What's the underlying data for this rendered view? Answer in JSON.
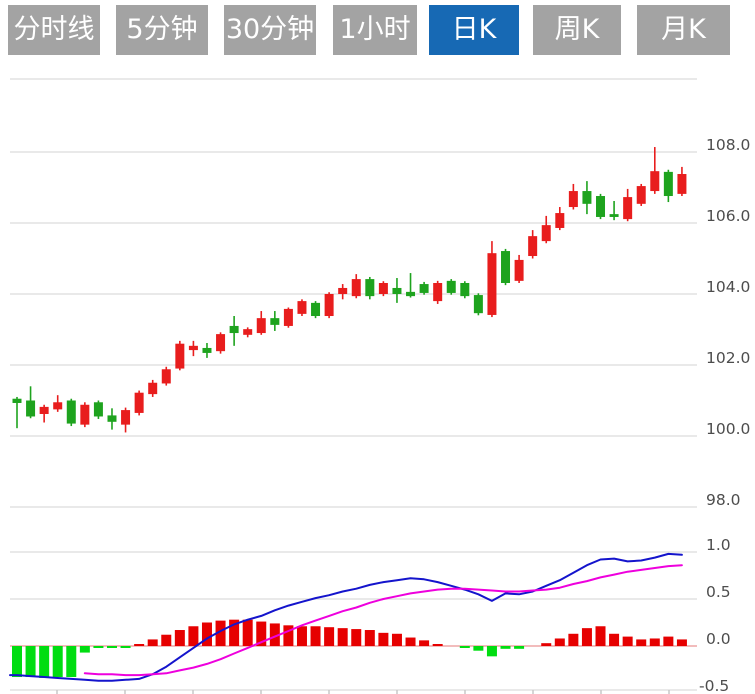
{
  "toolbar": {
    "tabs": [
      {
        "label": "分时线",
        "active": false
      },
      {
        "label": "5分钟",
        "active": false
      },
      {
        "label": "30分钟",
        "active": false
      },
      {
        "label": "1小时",
        "active": false
      },
      {
        "label": "日K",
        "active": true
      },
      {
        "label": "周K",
        "active": false
      },
      {
        "label": "月K",
        "active": false
      }
    ]
  },
  "colors": {
    "tab_inactive": "#a3a3a3",
    "tab_active": "#1769b4",
    "tab_text": "#ffffff",
    "grid": "#e2e2e2",
    "zero_line": "#f2bcbc",
    "axis_text": "#4d4d4d",
    "candle_up": "#e81d1d",
    "candle_down": "#1ea31e",
    "hist_up": "#e60000",
    "hist_down": "#00dd11",
    "dif_line": "#1414cc",
    "dea_line": "#ee00dd",
    "tick_mark": "#c8c8c8"
  },
  "chart_data": {
    "type": "candlestick",
    "title": "",
    "xlabel": "",
    "ylabel": "",
    "legend": "none",
    "grid": true,
    "panels": [
      {
        "name": "price",
        "type": "candlestick",
        "ylim": [
          97.6,
          108.3
        ],
        "yticks": [
          108.0,
          106.0,
          104.0,
          102.0,
          100.0,
          98.0
        ],
        "ytick_labels": [
          "108.0",
          "106.0",
          "104.0",
          "102.0",
          "100.0",
          "98.0"
        ],
        "up_color_meaning": "close>=open (red, Chinese convention)",
        "candles_ohlc": [
          [
            101.05,
            101.1,
            100.22,
            100.93
          ],
          [
            101.0,
            101.4,
            100.5,
            100.55
          ],
          [
            100.62,
            100.88,
            100.38,
            100.82
          ],
          [
            100.75,
            101.15,
            100.68,
            100.95
          ],
          [
            101.0,
            101.05,
            100.28,
            100.35
          ],
          [
            100.32,
            100.95,
            100.25,
            100.88
          ],
          [
            100.95,
            101.0,
            100.48,
            100.55
          ],
          [
            100.58,
            100.78,
            100.18,
            100.4
          ],
          [
            100.32,
            100.8,
            100.1,
            100.73
          ],
          [
            100.65,
            101.28,
            100.58,
            101.22
          ],
          [
            101.18,
            101.58,
            101.1,
            101.5
          ],
          [
            101.48,
            101.95,
            101.42,
            101.88
          ],
          [
            101.9,
            102.68,
            101.85,
            102.6
          ],
          [
            102.42,
            102.68,
            102.25,
            102.54
          ],
          [
            102.48,
            102.62,
            102.2,
            102.34
          ],
          [
            102.39,
            102.92,
            102.32,
            102.87
          ],
          [
            103.1,
            103.38,
            102.54,
            102.9
          ],
          [
            102.85,
            103.06,
            102.78,
            103.01
          ],
          [
            102.9,
            103.52,
            102.85,
            103.32
          ],
          [
            103.32,
            103.52,
            102.96,
            103.13
          ],
          [
            103.1,
            103.62,
            103.05,
            103.58
          ],
          [
            103.44,
            103.85,
            103.38,
            103.8
          ],
          [
            103.75,
            103.8,
            103.32,
            103.38
          ],
          [
            103.38,
            104.05,
            103.32,
            104.0
          ],
          [
            104.0,
            104.28,
            103.85,
            104.17
          ],
          [
            103.94,
            104.56,
            103.88,
            104.42
          ],
          [
            104.42,
            104.48,
            103.85,
            103.94
          ],
          [
            104.0,
            104.36,
            103.94,
            104.31
          ],
          [
            104.17,
            104.45,
            103.75,
            104.0
          ],
          [
            104.06,
            104.59,
            103.9,
            103.94
          ],
          [
            104.28,
            104.34,
            103.98,
            104.03
          ],
          [
            103.8,
            104.37,
            103.72,
            104.31
          ],
          [
            104.37,
            104.42,
            103.98,
            104.03
          ],
          [
            104.31,
            104.36,
            103.88,
            103.94
          ],
          [
            103.97,
            104.02,
            103.4,
            103.46
          ],
          [
            103.41,
            105.49,
            103.35,
            105.15
          ],
          [
            105.21,
            105.27,
            104.25,
            104.31
          ],
          [
            104.37,
            105.1,
            104.31,
            104.96
          ],
          [
            105.07,
            105.8,
            105.0,
            105.63
          ],
          [
            105.49,
            106.2,
            105.43,
            105.94
          ],
          [
            105.86,
            106.45,
            105.8,
            106.28
          ],
          [
            106.45,
            107.1,
            106.38,
            106.9
          ],
          [
            106.9,
            107.18,
            106.25,
            106.54
          ],
          [
            106.76,
            106.82,
            106.11,
            106.17
          ],
          [
            106.25,
            106.62,
            106.08,
            106.17
          ],
          [
            106.11,
            106.96,
            106.05,
            106.73
          ],
          [
            106.54,
            107.1,
            106.48,
            107.04
          ],
          [
            106.9,
            108.14,
            106.82,
            107.46
          ],
          [
            107.44,
            107.5,
            106.59,
            106.76
          ],
          [
            106.82,
            107.58,
            106.76,
            107.38
          ]
        ]
      },
      {
        "name": "macd",
        "type": "macd",
        "ylim": [
          -0.55,
          1.05
        ],
        "yticks": [
          1.0,
          0.5,
          0.0,
          -0.5
        ],
        "ytick_labels": [
          "1.0",
          "0.5",
          "0.0",
          "-0.5"
        ],
        "series": [
          {
            "name": "histogram",
            "values": [
              -0.33,
              -0.33,
              -0.34,
              -0.33,
              -0.33,
              -0.07,
              -0.02,
              -0.02,
              -0.01,
              0.02,
              0.07,
              0.12,
              0.17,
              0.21,
              0.25,
              0.27,
              0.28,
              0.28,
              0.26,
              0.24,
              0.22,
              0.21,
              0.21,
              0.2,
              0.19,
              0.18,
              0.17,
              0.14,
              0.13,
              0.09,
              0.06,
              0.02,
              0.0,
              -0.02,
              -0.05,
              -0.11,
              -0.03,
              -0.03,
              0.0,
              0.03,
              0.08,
              0.13,
              0.19,
              0.21,
              0.13,
              0.1,
              0.07,
              0.08,
              0.1,
              0.07
            ]
          },
          {
            "name": "dif",
            "values": [
              -0.31,
              -0.32,
              -0.33,
              -0.34,
              -0.35,
              -0.36,
              -0.37,
              -0.37,
              -0.36,
              -0.35,
              -0.3,
              -0.22,
              -0.12,
              -0.02,
              0.08,
              0.16,
              0.23,
              0.28,
              0.32,
              0.38,
              0.43,
              0.47,
              0.51,
              0.54,
              0.58,
              0.61,
              0.65,
              0.68,
              0.7,
              0.72,
              0.71,
              0.68,
              0.64,
              0.6,
              0.55,
              0.48,
              0.56,
              0.55,
              0.58,
              0.64,
              0.7,
              0.78,
              0.86,
              0.92,
              0.93,
              0.9,
              0.91,
              0.94,
              0.98,
              0.97
            ]
          },
          {
            "name": "dea",
            "values": [
              null,
              null,
              null,
              null,
              null,
              -0.29,
              -0.3,
              -0.3,
              -0.31,
              -0.31,
              -0.3,
              -0.29,
              -0.26,
              -0.23,
              -0.19,
              -0.14,
              -0.08,
              -0.02,
              0.04,
              0.1,
              0.16,
              0.22,
              0.27,
              0.32,
              0.37,
              0.41,
              0.46,
              0.5,
              0.53,
              0.56,
              0.58,
              0.6,
              0.61,
              0.61,
              0.6,
              0.59,
              0.58,
              0.58,
              0.59,
              0.6,
              0.62,
              0.66,
              0.69,
              0.73,
              0.76,
              0.79,
              0.81,
              0.83,
              0.85,
              0.86
            ]
          }
        ]
      }
    ],
    "x_axis": {
      "tick_count": 10,
      "labels_visible": false
    },
    "x_count": 50
  }
}
